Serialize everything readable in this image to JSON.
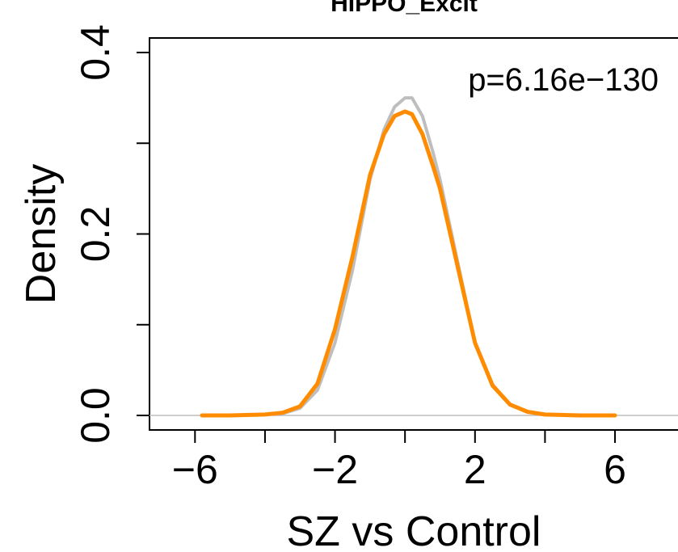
{
  "chart_data": {
    "type": "line",
    "title": "HIPPO_Excit",
    "xlabel": "SZ vs Control",
    "ylabel": "Density",
    "annotation": "p=6.16e−130",
    "xlim": [
      -7.3,
      7.8
    ],
    "ylim": [
      0,
      0.4
    ],
    "x_ticks": [
      -6,
      -4,
      -2,
      0,
      2,
      4,
      6
    ],
    "x_tick_labels": [
      "−6",
      "−2",
      "2",
      "6"
    ],
    "y_ticks": [
      0.0,
      0.1,
      0.2,
      0.3,
      0.4
    ],
    "y_tick_labels": [
      "0.0",
      "0.2",
      "0.4"
    ],
    "reference_line_y": 0,
    "colors": {
      "background_series": "#bebebe",
      "highlight_series": "#ff8c00",
      "reference_line": "#bebebe"
    },
    "series": [
      {
        "role": "background",
        "color": "#bebebe",
        "x": [
          -5.8,
          -5,
          -4,
          -3.5,
          -3,
          -2.5,
          -2,
          -1.5,
          -1,
          -0.6,
          -0.3,
          0,
          0.2,
          0.5,
          0.8,
          1,
          1.5,
          2,
          2.5,
          3,
          3.5,
          4,
          5,
          6
        ],
        "y": [
          0,
          0,
          0.001,
          0.002,
          0.008,
          0.028,
          0.08,
          0.16,
          0.26,
          0.315,
          0.34,
          0.35,
          0.35,
          0.33,
          0.29,
          0.26,
          0.17,
          0.08,
          0.034,
          0.012,
          0.004,
          0.001,
          0,
          0
        ]
      },
      {
        "role": "highlight",
        "color": "#ff8c00",
        "x": [
          -5.8,
          -5,
          -4,
          -3.5,
          -3,
          -2.5,
          -2,
          -1.5,
          -1,
          -0.6,
          -0.3,
          0,
          0.2,
          0.5,
          0.8,
          1,
          1.5,
          2,
          2.5,
          3,
          3.5,
          4,
          5,
          6
        ],
        "y": [
          0,
          0,
          0.001,
          0.003,
          0.01,
          0.035,
          0.095,
          0.175,
          0.265,
          0.31,
          0.33,
          0.335,
          0.332,
          0.31,
          0.275,
          0.25,
          0.165,
          0.08,
          0.033,
          0.012,
          0.004,
          0.001,
          0,
          0
        ]
      }
    ]
  }
}
